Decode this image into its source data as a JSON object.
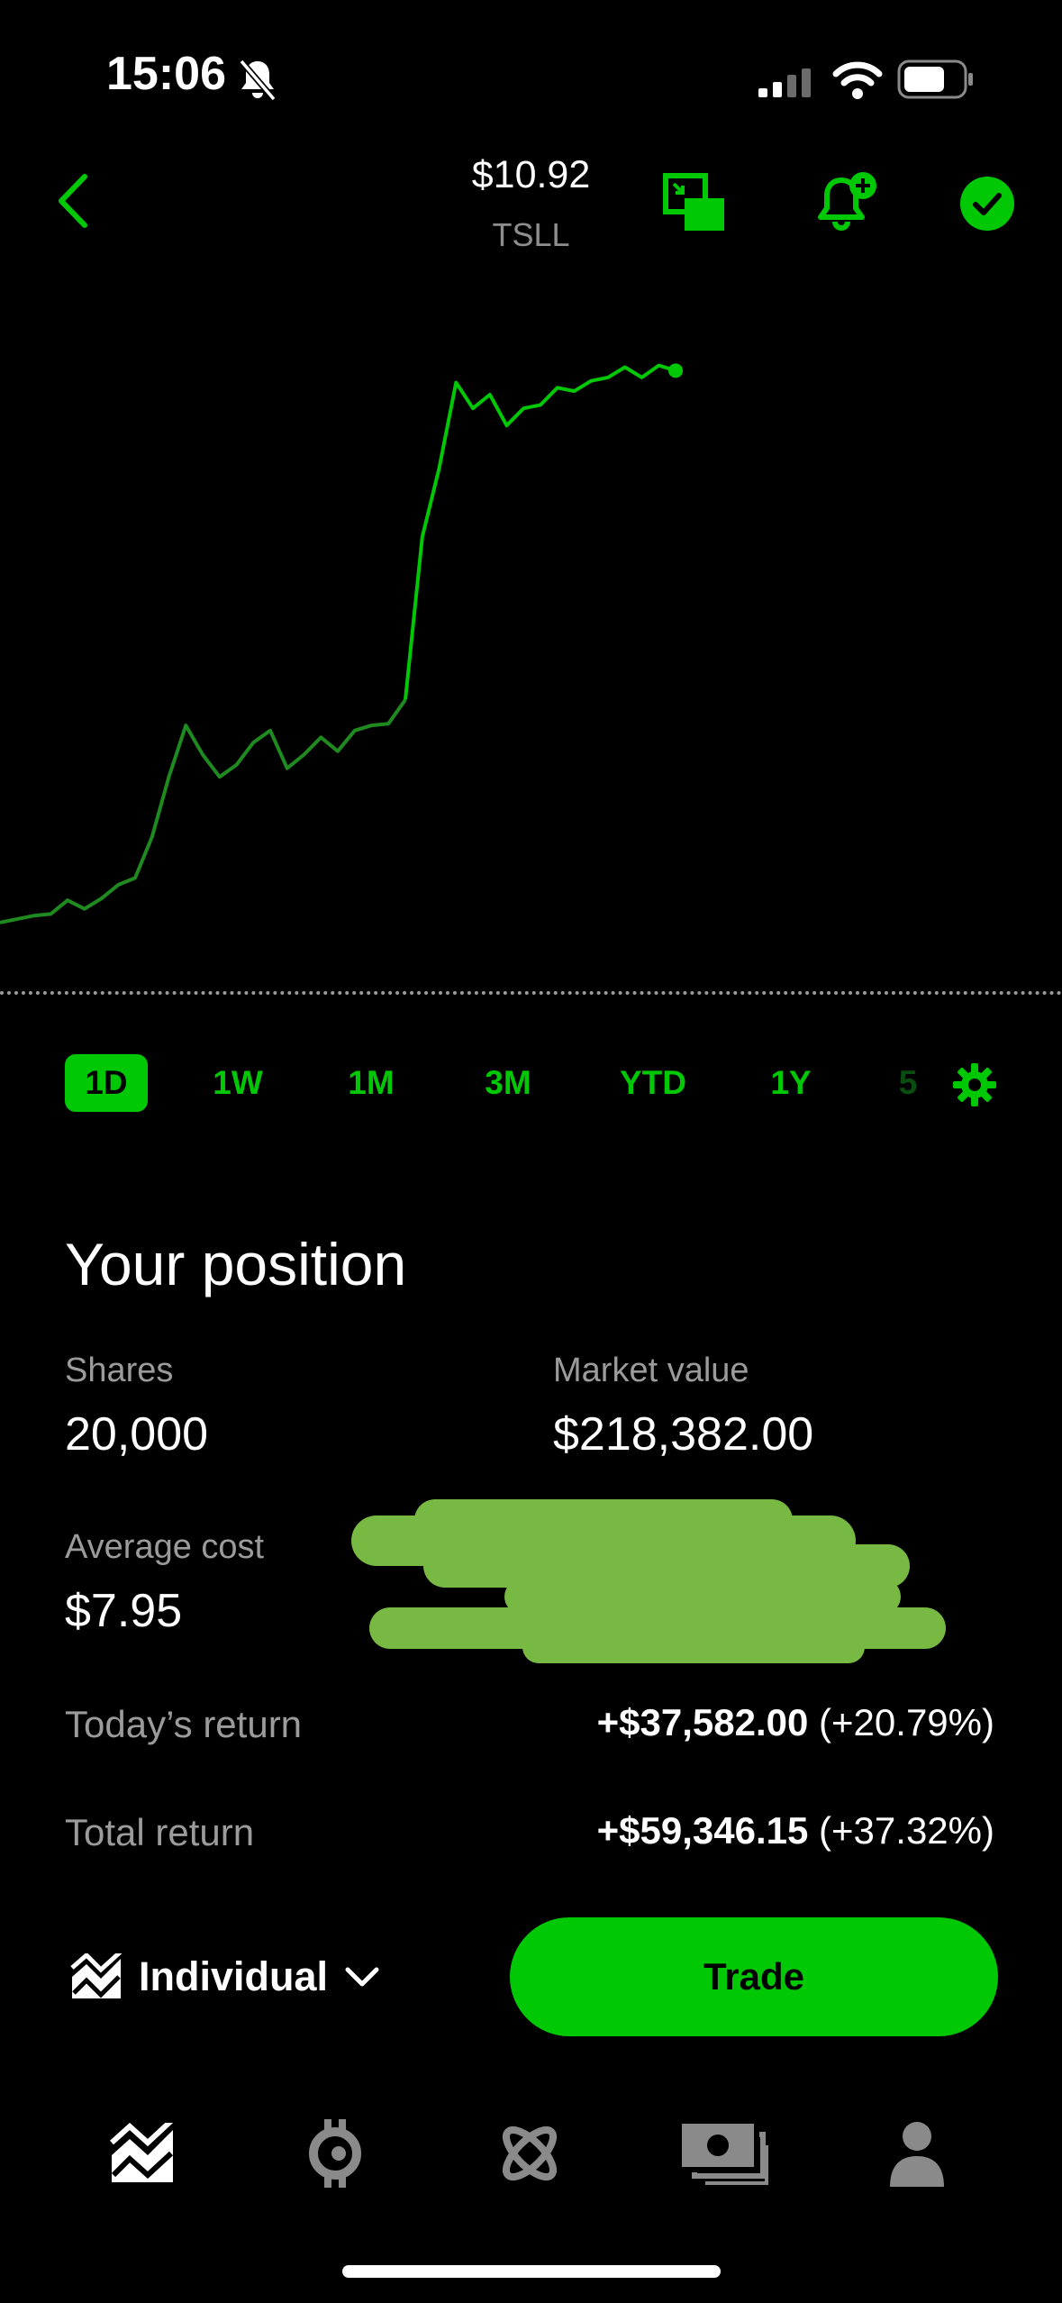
{
  "status_bar": {
    "time": "15:06"
  },
  "header": {
    "price": "$10.92",
    "symbol": "TSLL"
  },
  "chart_data": {
    "type": "line",
    "x": [
      0,
      5,
      10,
      15,
      20,
      25,
      30,
      35,
      40,
      45,
      50,
      55,
      60,
      65,
      70,
      75,
      80,
      85,
      90,
      95,
      100,
      105,
      110,
      115,
      120,
      125,
      130,
      135,
      140,
      145,
      150,
      155,
      160,
      165,
      170,
      175,
      180,
      185,
      190,
      195,
      200
    ],
    "values": [
      7.7,
      7.72,
      7.74,
      7.75,
      7.83,
      7.78,
      7.84,
      7.92,
      7.96,
      8.2,
      8.55,
      8.85,
      8.68,
      8.55,
      8.62,
      8.75,
      8.82,
      8.6,
      8.68,
      8.78,
      8.7,
      8.82,
      8.85,
      8.86,
      9.0,
      9.95,
      10.35,
      10.85,
      10.7,
      10.78,
      10.6,
      10.7,
      10.72,
      10.82,
      10.8,
      10.86,
      10.88,
      10.94,
      10.88,
      10.95,
      10.92
    ],
    "series_colors": {
      "before_open": "#1f8a1f",
      "after_open": "#00c805"
    },
    "xlabel": "",
    "ylabel": ""
  },
  "ranges": [
    "1D",
    "1W",
    "1M",
    "3M",
    "YTD",
    "1Y",
    "5"
  ],
  "position": {
    "title": "Your position",
    "shares_label": "Shares",
    "shares_value": "20,000",
    "market_value_label": "Market value",
    "market_value": "$218,382.00",
    "avg_cost_label": "Average cost",
    "avg_cost_value": "$7.95",
    "today_return_label": "Today’s return",
    "today_return_amount": "+$37,582.00",
    "today_return_pct": "(+20.79%)",
    "total_return_label": "Total return",
    "total_return_amount": "+$59,346.15",
    "total_return_pct": "(+37.32%)"
  },
  "account": {
    "label": "Individual"
  },
  "trade_button": {
    "label": "Trade"
  },
  "colors": {
    "accent": "#00c805",
    "redaction": "#77b943"
  }
}
